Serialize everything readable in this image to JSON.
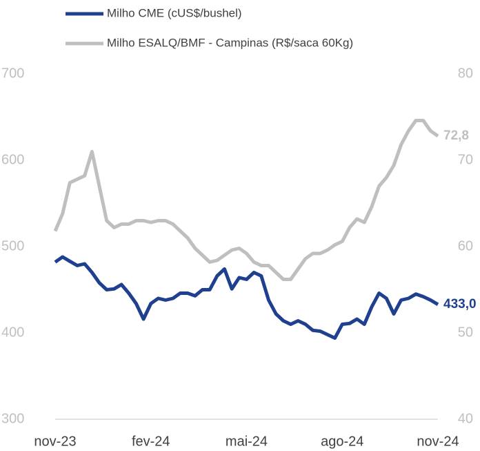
{
  "chart_data": {
    "type": "line",
    "categories": [
      "nov-23",
      null,
      null,
      null,
      null,
      null,
      null,
      null,
      null,
      null,
      null,
      null,
      null,
      "fev-24",
      null,
      null,
      null,
      null,
      null,
      null,
      null,
      null,
      null,
      null,
      null,
      null,
      "mai-24",
      null,
      null,
      null,
      null,
      null,
      null,
      null,
      null,
      null,
      null,
      null,
      null,
      "ago-24",
      null,
      null,
      null,
      null,
      null,
      null,
      null,
      null,
      null,
      null,
      null,
      null,
      "nov-24"
    ],
    "series": [
      {
        "name": "Milho CME (cUS$/bushel)",
        "color": "#1f3f8f",
        "axis": "y",
        "values": [
          482,
          488,
          483,
          478,
          480,
          470,
          458,
          450,
          451,
          456,
          446,
          434,
          416,
          434,
          440,
          438,
          440,
          446,
          446,
          443,
          450,
          450,
          466,
          474,
          451,
          464,
          462,
          470,
          466,
          438,
          422,
          414,
          410,
          414,
          410,
          403,
          402,
          398,
          394,
          410,
          411,
          416,
          410,
          430,
          446,
          440,
          422,
          438,
          440,
          445,
          442,
          438,
          433
        ],
        "value_labels": [
          null,
          null,
          null,
          null,
          null,
          null,
          null,
          null,
          null,
          null,
          null,
          null,
          null,
          null,
          null,
          null,
          null,
          null,
          null,
          null,
          null,
          null,
          null,
          null,
          null,
          null,
          null,
          null,
          null,
          null,
          null,
          null,
          null,
          null,
          null,
          null,
          null,
          null,
          null,
          null,
          null,
          null,
          null,
          null,
          null,
          null,
          null,
          null,
          null,
          null,
          null,
          null,
          "433,0"
        ]
      },
      {
        "name": "Milho ESALQ/BMF - Campinas (R$/saca 60Kg)",
        "color": "#bfbfbf",
        "axis": "y2",
        "values": [
          61.8,
          63.8,
          67.4,
          67.8,
          68.2,
          71,
          67,
          63,
          62.2,
          62.6,
          62.6,
          63,
          63,
          62.8,
          63,
          63,
          62.6,
          61.8,
          61,
          59.8,
          59,
          58.2,
          58.4,
          59,
          59.6,
          59.8,
          59.2,
          58.2,
          57.8,
          57.8,
          57,
          56.2,
          56.2,
          57.4,
          58.6,
          59.2,
          59.2,
          59.6,
          60.2,
          60.6,
          62.2,
          63.2,
          62.8,
          64.6,
          67,
          68,
          69.4,
          71.8,
          73.4,
          74.6,
          74.6,
          73.4,
          72.8
        ],
        "value_labels": [
          null,
          null,
          null,
          null,
          null,
          null,
          null,
          null,
          null,
          null,
          null,
          null,
          null,
          null,
          null,
          null,
          null,
          null,
          null,
          null,
          null,
          null,
          null,
          null,
          null,
          null,
          null,
          null,
          null,
          null,
          null,
          null,
          null,
          null,
          null,
          null,
          null,
          null,
          null,
          null,
          null,
          null,
          null,
          null,
          null,
          null,
          null,
          null,
          null,
          null,
          null,
          null,
          "72,8"
        ]
      }
    ],
    "ylim": [
      300,
      700
    ],
    "yticks": [
      300,
      400,
      500,
      600,
      700
    ],
    "y2lim": [
      40,
      80
    ],
    "y2ticks": [
      40,
      50,
      60,
      70,
      80
    ],
    "grid": false,
    "legend": "top"
  }
}
